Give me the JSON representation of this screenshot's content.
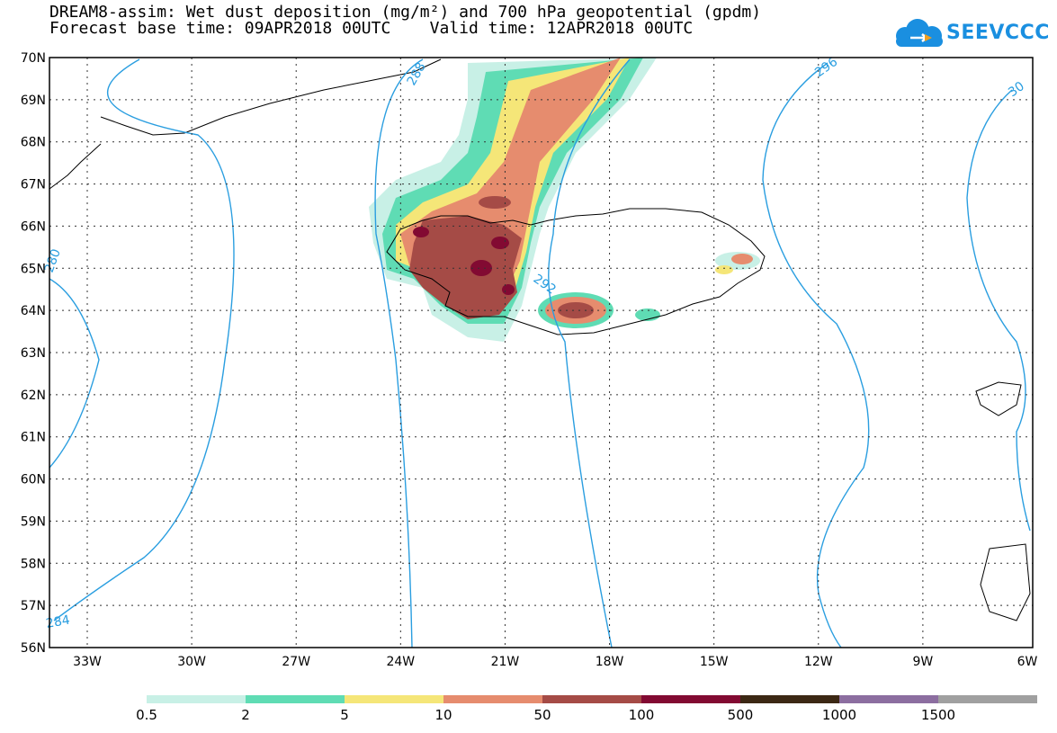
{
  "header": {
    "title_line1": "DREAM8-assim: Wet dust deposition (mg/m²) and 700 hPa geopotential (gpdm)",
    "title_line2": "Forecast base time: 09APR2018 00UTC    Valid time: 12APR2018 00UTC"
  },
  "logo": {
    "text": "SEEVCCC",
    "icon": "cloud-icon"
  },
  "map": {
    "lat_labels": [
      "70N",
      "69N",
      "68N",
      "67N",
      "66N",
      "65N",
      "64N",
      "63N",
      "62N",
      "61N",
      "60N",
      "59N",
      "58N",
      "57N",
      "56N"
    ],
    "lon_labels": [
      "33W",
      "30W",
      "27W",
      "24W",
      "21W",
      "18W",
      "15W",
      "12W",
      "9W",
      "6W"
    ],
    "contour_labels": [
      "288",
      "292",
      "296",
      "280",
      "284",
      "30"
    ]
  },
  "colorbar": {
    "labels": [
      "0.5",
      "2",
      "5",
      "10",
      "50",
      "100",
      "500",
      "1000",
      "1500"
    ],
    "colors": [
      "#c8f0e6",
      "#5fdcb4",
      "#f5e678",
      "#e68c6e",
      "#a54b46",
      "#820a32",
      "#3c2814",
      "#8c6ea0",
      "#a0a0a0"
    ]
  }
}
